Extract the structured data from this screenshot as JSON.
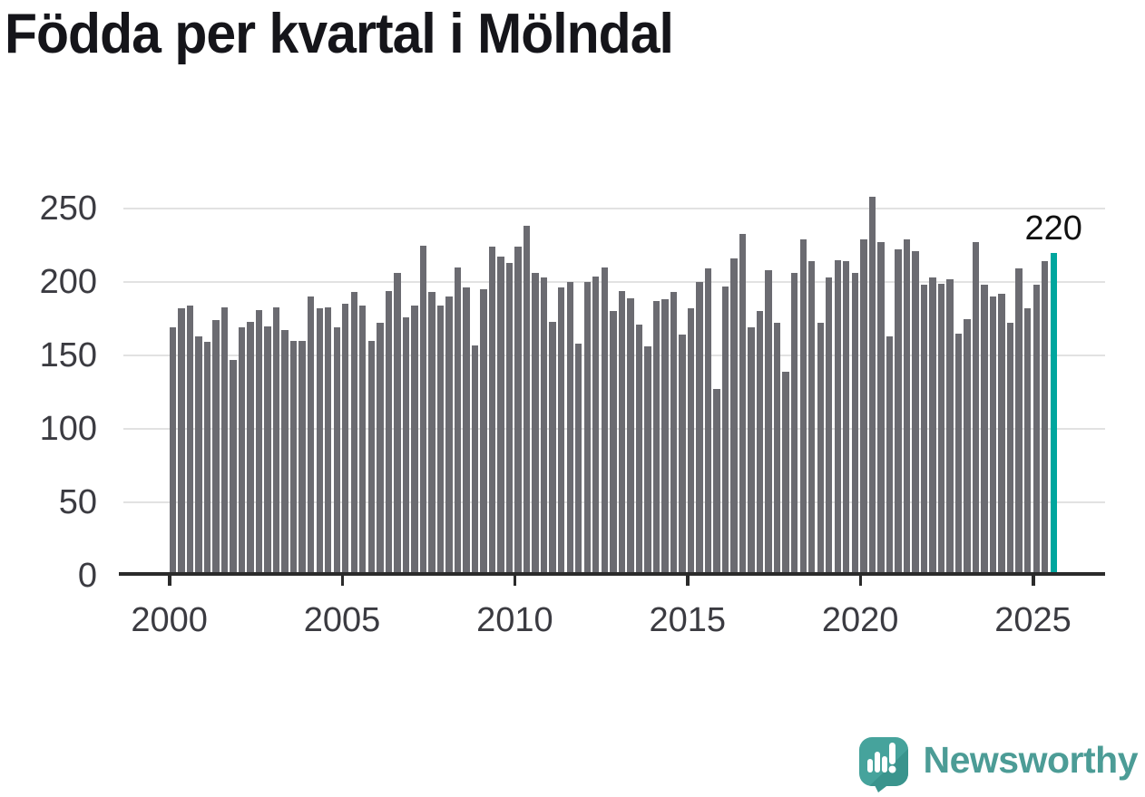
{
  "header": {
    "title": "Födda per kvartal i Mölndal"
  },
  "chart_data": {
    "type": "bar",
    "title": "Födda per kvartal i Mölndal",
    "xlabel": "",
    "ylabel": "",
    "ylim": [
      0,
      262
    ],
    "grid": true,
    "x_range": "2000 Q1 – 2025 Q3",
    "categories": [
      "2000Q1",
      "2000Q2",
      "2000Q3",
      "2000Q4",
      "2001Q1",
      "2001Q2",
      "2001Q3",
      "2001Q4",
      "2002Q1",
      "2002Q2",
      "2002Q3",
      "2002Q4",
      "2003Q1",
      "2003Q2",
      "2003Q3",
      "2003Q4",
      "2004Q1",
      "2004Q2",
      "2004Q3",
      "2004Q4",
      "2005Q1",
      "2005Q2",
      "2005Q3",
      "2005Q4",
      "2006Q1",
      "2006Q2",
      "2006Q3",
      "2006Q4",
      "2007Q1",
      "2007Q2",
      "2007Q3",
      "2007Q4",
      "2008Q1",
      "2008Q2",
      "2008Q3",
      "2008Q4",
      "2009Q1",
      "2009Q2",
      "2009Q3",
      "2009Q4",
      "2010Q1",
      "2010Q2",
      "2010Q3",
      "2010Q4",
      "2011Q1",
      "2011Q2",
      "2011Q3",
      "2011Q4",
      "2012Q1",
      "2012Q2",
      "2012Q3",
      "2012Q4",
      "2013Q1",
      "2013Q2",
      "2013Q3",
      "2013Q4",
      "2014Q1",
      "2014Q2",
      "2014Q3",
      "2014Q4",
      "2015Q1",
      "2015Q2",
      "2015Q3",
      "2015Q4",
      "2016Q1",
      "2016Q2",
      "2016Q3",
      "2016Q4",
      "2017Q1",
      "2017Q2",
      "2017Q3",
      "2017Q4",
      "2018Q1",
      "2018Q2",
      "2018Q3",
      "2018Q4",
      "2019Q1",
      "2019Q2",
      "2019Q3",
      "2019Q4",
      "2020Q1",
      "2020Q2",
      "2020Q3",
      "2020Q4",
      "2021Q1",
      "2021Q2",
      "2021Q3",
      "2021Q4",
      "2022Q1",
      "2022Q2",
      "2022Q3",
      "2022Q4",
      "2023Q1",
      "2023Q2",
      "2023Q3",
      "2023Q4",
      "2024Q1",
      "2024Q2",
      "2024Q3",
      "2024Q4",
      "2025Q1",
      "2025Q2",
      "2025Q3"
    ],
    "values": [
      169,
      182,
      184,
      163,
      159,
      174,
      183,
      147,
      169,
      173,
      181,
      170,
      183,
      167,
      160,
      160,
      190,
      182,
      183,
      169,
      185,
      193,
      184,
      160,
      172,
      194,
      206,
      176,
      184,
      225,
      193,
      184,
      190,
      210,
      196,
      157,
      195,
      224,
      217,
      213,
      224,
      238,
      206,
      203,
      173,
      196,
      200,
      158,
      200,
      204,
      210,
      180,
      194,
      189,
      171,
      156,
      187,
      188,
      193,
      164,
      182,
      200,
      209,
      127,
      197,
      216,
      233,
      169,
      180,
      208,
      172,
      139,
      206,
      229,
      214,
      172,
      203,
      215,
      214,
      206,
      229,
      258,
      227,
      163,
      222,
      229,
      221,
      198,
      203,
      199,
      202,
      165,
      175,
      227,
      198,
      190,
      192,
      172,
      209,
      182,
      198,
      214,
      220
    ],
    "highlight_last": true,
    "last_value_label": "220",
    "xticks": [
      "2000",
      "2005",
      "2010",
      "2015",
      "2020",
      "2025"
    ],
    "yticks": [
      0,
      50,
      100,
      150,
      200,
      250
    ],
    "legend": "none"
  },
  "footer": {
    "brand": "Newsworthy",
    "logo_icon": "speech-bubble-bar-chart-icon"
  },
  "colors": {
    "background": "#ffffff",
    "title": "#15151a",
    "bar": "#6b6b71",
    "highlight": "#00a69e",
    "gridline": "#e2e2e2",
    "axis_line": "#2b2b2b",
    "axis_label": "#3b3b41",
    "brand": "#4c9c96",
    "logo_teal": "#46a39c",
    "logo_teal_dark": "#3a948d"
  }
}
